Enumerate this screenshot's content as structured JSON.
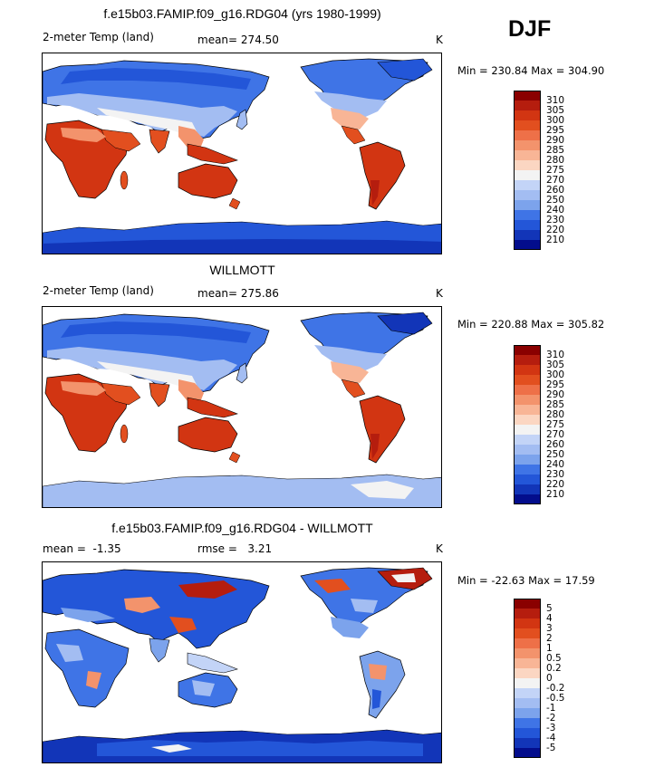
{
  "season": "DJF",
  "panels": [
    {
      "title": "f.e15b03.FAMIP.f09_g16.RDG04 (yrs 1980-1999)",
      "left_label": "2-meter Temp (land)",
      "stat_label": "mean=",
      "stat_value": "274.50",
      "stat2_label": "",
      "stat2_value": "",
      "units": "K",
      "min_label": "Min =",
      "min_value": "230.84",
      "max_label": "Max =",
      "max_value": "304.90",
      "colorbar": {
        "ticks": [
          "310",
          "305",
          "300",
          "295",
          "290",
          "285",
          "280",
          "275",
          "270",
          "260",
          "250",
          "240",
          "230",
          "220",
          "210"
        ],
        "colors": [
          "#8a0000",
          "#b51d0e",
          "#d23512",
          "#e24f1f",
          "#ee7048",
          "#f3936c",
          "#f8b596",
          "#fbd6c2",
          "#f3f3f3",
          "#c3d4f7",
          "#a3bdf2",
          "#7ca3ec",
          "#3f74e6",
          "#2356d8",
          "#1235b8",
          "#030d8c"
        ]
      }
    },
    {
      "title": "WILLMOTT",
      "left_label": "2-meter Temp (land)",
      "stat_label": "mean=",
      "stat_value": "275.86",
      "stat2_label": "",
      "stat2_value": "",
      "units": "K",
      "min_label": "Min =",
      "min_value": "220.88",
      "max_label": "Max =",
      "max_value": "305.82",
      "colorbar": {
        "ticks": [
          "310",
          "305",
          "300",
          "295",
          "290",
          "285",
          "280",
          "275",
          "270",
          "260",
          "250",
          "240",
          "230",
          "220",
          "210"
        ],
        "colors": [
          "#8a0000",
          "#b51d0e",
          "#d23512",
          "#e24f1f",
          "#ee7048",
          "#f3936c",
          "#f8b596",
          "#fbd6c2",
          "#f3f3f3",
          "#c3d4f7",
          "#a3bdf2",
          "#7ca3ec",
          "#3f74e6",
          "#2356d8",
          "#1235b8",
          "#030d8c"
        ]
      }
    },
    {
      "title": "f.e15b03.FAMIP.f09_g16.RDG04 - WILLMOTT",
      "left_label": "mean =",
      "stat_label": "",
      "stat_value": "-1.35",
      "stat2_label": "rmse =",
      "stat2_value": "3.21",
      "units": "K",
      "min_label": "Min =",
      "min_value": "-22.63",
      "max_label": "Max =",
      "max_value": "17.59",
      "colorbar": {
        "ticks": [
          "5",
          "4",
          "3",
          "2",
          "1",
          "0.5",
          "0.2",
          "0",
          "-0.2",
          "-0.5",
          "-1",
          "-2",
          "-3",
          "-4",
          "-5"
        ],
        "colors": [
          "#8a0000",
          "#b51d0e",
          "#d23512",
          "#e24f1f",
          "#ee7048",
          "#f3936c",
          "#f8b596",
          "#fbd6c2",
          "#f3f3f3",
          "#c3d4f7",
          "#a3bdf2",
          "#7ca3ec",
          "#3f74e6",
          "#2356d8",
          "#1235b8",
          "#030d8c"
        ]
      }
    }
  ]
}
